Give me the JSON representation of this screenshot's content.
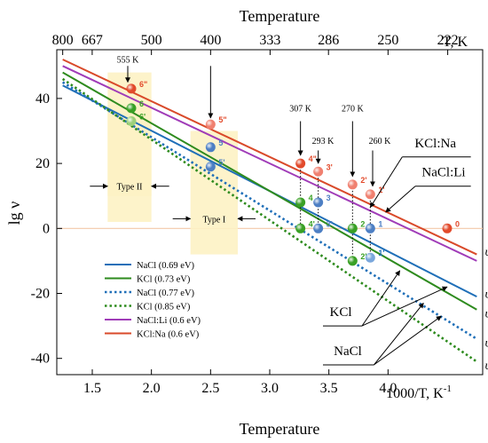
{
  "chart_data": {
    "type": "line",
    "title": "Temperature",
    "xlabel": "Temperature",
    "ylabel": "lg ν",
    "x_unit_label": "1000/T, K",
    "x_unit_sup": "-1",
    "top_unit_label": "T, K",
    "xlim": [
      1.2,
      4.8
    ],
    "ylim": [
      -45,
      55
    ],
    "x_ticks": [
      1.5,
      2.0,
      2.5,
      3.0,
      3.5,
      4.0
    ],
    "x_tick_labels": [
      "1.5",
      "2.0",
      "2.5",
      "3.0",
      "3.5",
      "4.0"
    ],
    "y_ticks": [
      -40,
      -20,
      0,
      20,
      40
    ],
    "y_tick_labels": [
      "-40",
      "-20",
      "0",
      "20",
      "40"
    ],
    "top_ticks_T": [
      800,
      667,
      500,
      400,
      333,
      286,
      250,
      222
    ],
    "top_tick_labels": [
      "800",
      "667",
      "500",
      "400",
      "333",
      "286",
      "250",
      "222"
    ],
    "grid": false,
    "legend_position": "bottom-left",
    "series": [
      {
        "name": "NaCl (0.69 eV)",
        "color": "#1f6fb8",
        "style": "solid",
        "x": [
          1.25,
          4.75
        ],
        "y": [
          44,
          -21
        ]
      },
      {
        "name": "KCl (0.73 eV)",
        "color": "#2e8b1e",
        "style": "solid",
        "x": [
          1.25,
          4.75
        ],
        "y": [
          48,
          -25
        ]
      },
      {
        "name": "NaCl (0.77 eV)",
        "color": "#1f6fb8",
        "style": "dotted",
        "x": [
          1.25,
          4.75
        ],
        "y": [
          45,
          -34
        ]
      },
      {
        "name": "KCl (0.85 eV)",
        "color": "#2e8b1e",
        "style": "dotted",
        "x": [
          1.25,
          4.75
        ],
        "y": [
          46,
          -41
        ]
      },
      {
        "name": "NaCl:Li (0.6 eV)",
        "color": "#a03cb8",
        "style": "solid",
        "x": [
          1.25,
          4.75
        ],
        "y": [
          50,
          -10
        ]
      },
      {
        "name": "KCl:Na (0.6 eV)",
        "color": "#d94a2a",
        "style": "solid",
        "x": [
          1.25,
          4.75
        ],
        "y": [
          52,
          -8
        ]
      }
    ],
    "points": [
      {
        "label": "6\"",
        "x": 1.83,
        "y": 43,
        "color": "#e24a2b"
      },
      {
        "label": "6",
        "x": 1.83,
        "y": 37,
        "color": "#39a025"
      },
      {
        "label": "6'",
        "x": 1.83,
        "y": 33,
        "color": "#9cd07a"
      },
      {
        "label": "5\"",
        "x": 2.5,
        "y": 32,
        "color": "#f08070"
      },
      {
        "label": "5",
        "x": 2.5,
        "y": 25,
        "color": "#4d7fc4"
      },
      {
        "label": "5'",
        "x": 2.5,
        "y": 19,
        "color": "#4d7fc4"
      },
      {
        "label": "4\"",
        "x": 3.26,
        "y": 20,
        "color": "#e24a2b"
      },
      {
        "label": "4",
        "x": 3.26,
        "y": 8,
        "color": "#39a025"
      },
      {
        "label": "4'",
        "x": 3.26,
        "y": 0,
        "color": "#39a025"
      },
      {
        "label": "3'",
        "x": 3.41,
        "y": 17.5,
        "color": "#f08070"
      },
      {
        "label": "3",
        "x": 3.41,
        "y": 8,
        "color": "#4d7fc4"
      },
      {
        "label": "3'",
        "x": 3.41,
        "y": 0,
        "color": "#4d7fc4"
      },
      {
        "label": "2'",
        "x": 3.7,
        "y": 13.5,
        "color": "#f08070"
      },
      {
        "label": "2",
        "x": 3.7,
        "y": 0,
        "color": "#39a025"
      },
      {
        "label": "2'",
        "x": 3.7,
        "y": -10,
        "color": "#39a025"
      },
      {
        "label": "1'",
        "x": 3.85,
        "y": 10.5,
        "color": "#f08070"
      },
      {
        "label": "1",
        "x": 3.85,
        "y": 0,
        "color": "#4d7fc4"
      },
      {
        "label": "1'",
        "x": 3.85,
        "y": -9,
        "color": "#7aa7dc"
      },
      {
        "label": "0",
        "x": 4.5,
        "y": 0,
        "color": "#e24a2b"
      }
    ],
    "annotations": {
      "type_ii": "Type II",
      "type_i": "Type I",
      "k555": "555 K",
      "k307": "307 K",
      "k270": "270 K",
      "k293": "293 K",
      "k260": "260 K",
      "kcl_na": "KCl:Na",
      "nacl_li": "NaCl:Li",
      "kcl": "KCl",
      "nacl": "NaCl"
    },
    "line_end_labels": [
      {
        "label": "υc−",
        "y": -7
      },
      {
        "label": "υc−",
        "y": -20
      },
      {
        "label": "υc−",
        "y": -26
      },
      {
        "label": "υa+",
        "y": -35
      },
      {
        "label": "υa+",
        "y": -42
      }
    ]
  }
}
